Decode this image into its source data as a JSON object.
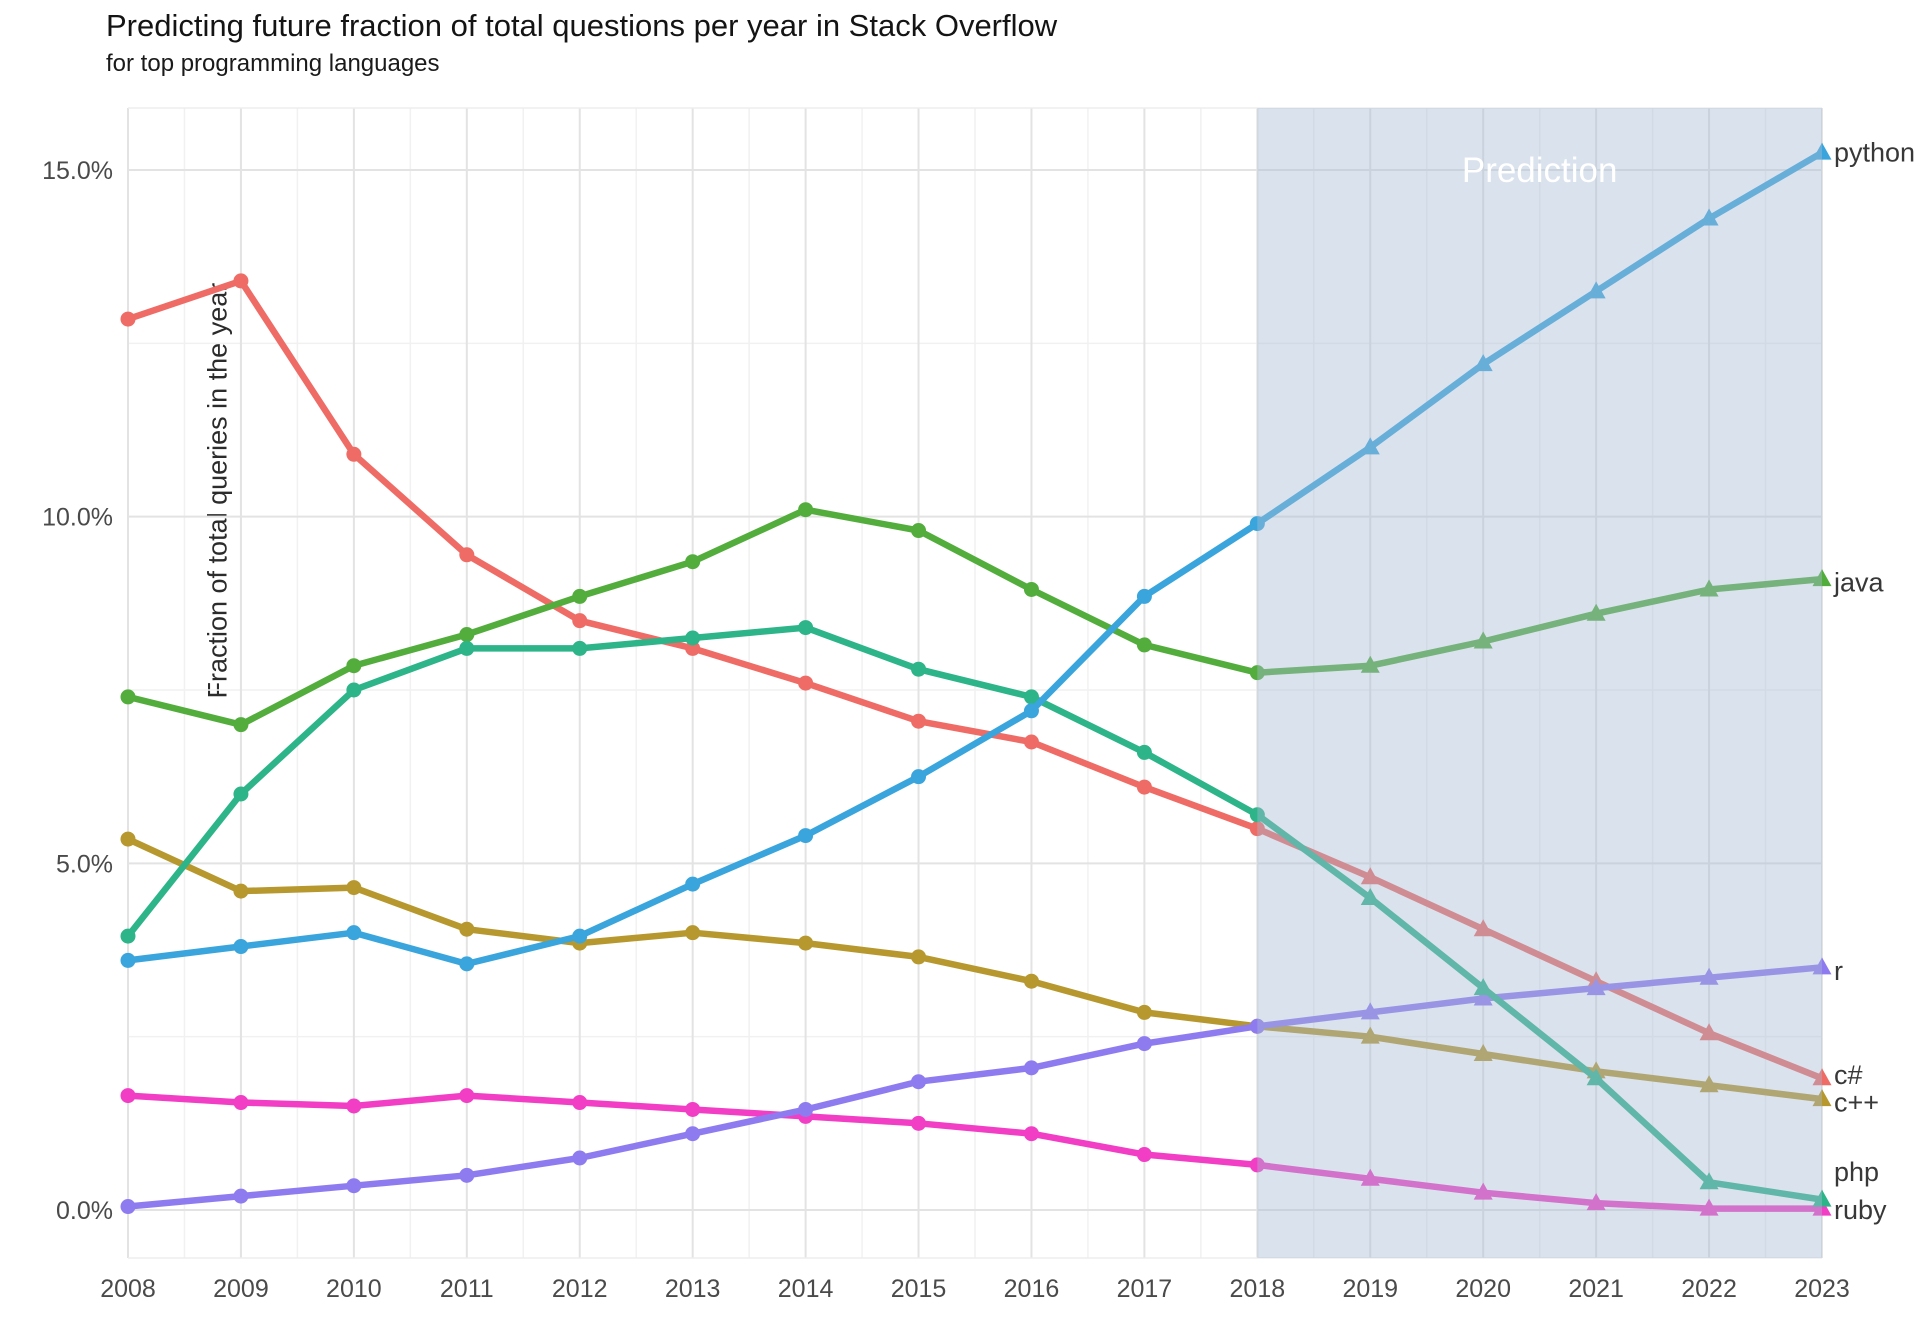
{
  "header": {
    "title": "Predicting future fraction of total questions per year in Stack Overflow",
    "subtitle": "for top programming languages"
  },
  "y_axis": {
    "label": "Fraction of total queries in the year",
    "tick_values": [
      0,
      5,
      10,
      15
    ],
    "tick_labels": [
      "0.0%",
      "5.0%",
      "10.0%",
      "15.0%"
    ],
    "minor_tick_values": [
      2.5,
      7.5,
      12.5
    ]
  },
  "x_axis": {
    "tick_labels": [
      "2008",
      "2009",
      "2010",
      "2011",
      "2012",
      "2013",
      "2014",
      "2015",
      "2016",
      "2017",
      "2018",
      "2019",
      "2020",
      "2021",
      "2022",
      "2023"
    ]
  },
  "prediction": {
    "label": "Prediction",
    "band_start_year": 2018,
    "band_fill": "rgba(167,186,211,0.42)",
    "label_color": "#ffffff"
  },
  "style_colors": {
    "grid_major": "#e3e3e3",
    "grid_minor": "#f1f1f1",
    "panel_edge": "#ededed",
    "axis_text": "#4a4a4a",
    "series_label_text": "#383838"
  },
  "chart_data": {
    "type": "line",
    "title": "Predicting future fraction of total questions per year in Stack Overflow",
    "subtitle": "for top programming languages",
    "xlabel": "",
    "ylabel": "Fraction of total queries in the year",
    "x": [
      2008,
      2009,
      2010,
      2011,
      2012,
      2013,
      2014,
      2015,
      2016,
      2017,
      2018,
      2019,
      2020,
      2021,
      2022,
      2023
    ],
    "ylim": [
      -0.7,
      15.9
    ],
    "grid": true,
    "legend_position": "right-edge-labels",
    "prediction_start_year": 2018,
    "marker_history": "circle",
    "marker_prediction": "triangle",
    "series": [
      {
        "name": "c#",
        "color": "#ee6c65",
        "label_y": 1.95,
        "values": [
          12.85,
          13.4,
          10.9,
          9.45,
          8.5,
          8.1,
          7.6,
          7.05,
          6.75,
          6.1,
          5.5,
          4.8,
          4.05,
          3.3,
          2.55,
          1.9
        ]
      },
      {
        "name": "c++",
        "color": "#b7982e",
        "label_y": 1.55,
        "values": [
          5.35,
          4.6,
          4.65,
          4.05,
          3.85,
          4.0,
          3.85,
          3.65,
          3.3,
          2.85,
          2.65,
          2.5,
          2.25,
          2.0,
          1.8,
          1.6
        ]
      },
      {
        "name": "java",
        "color": "#53ad3c",
        "label_y": 9.05,
        "values": [
          7.4,
          7.0,
          7.85,
          8.3,
          8.85,
          9.35,
          10.1,
          9.8,
          8.95,
          8.15,
          7.75,
          7.85,
          8.2,
          8.6,
          8.95,
          9.1
        ]
      },
      {
        "name": "ruby",
        "color": "#f13ec5",
        "label_y": 0.0,
        "values": [
          1.65,
          1.55,
          1.5,
          1.65,
          1.55,
          1.45,
          1.35,
          1.25,
          1.1,
          0.8,
          0.65,
          0.45,
          0.25,
          0.1,
          0.02,
          0.02
        ]
      },
      {
        "name": "r",
        "color": "#8f7bf0",
        "label_y": 3.45,
        "values": [
          0.05,
          0.2,
          0.35,
          0.5,
          0.75,
          1.1,
          1.45,
          1.85,
          2.05,
          2.4,
          2.65,
          2.85,
          3.05,
          3.2,
          3.35,
          3.5
        ]
      },
      {
        "name": "php",
        "color": "#2db489",
        "label_y": 0.55,
        "values": [
          3.95,
          6.0,
          7.5,
          8.1,
          8.1,
          8.25,
          8.4,
          7.8,
          7.4,
          6.6,
          5.7,
          4.5,
          3.2,
          1.9,
          0.4,
          0.15
        ]
      },
      {
        "name": "python",
        "color": "#3aa5dc",
        "label_y": 15.25,
        "values": [
          3.6,
          3.8,
          4.0,
          3.55,
          3.95,
          4.7,
          5.4,
          6.25,
          7.2,
          8.85,
          9.9,
          11.0,
          12.2,
          13.25,
          14.3,
          15.25
        ]
      }
    ]
  }
}
